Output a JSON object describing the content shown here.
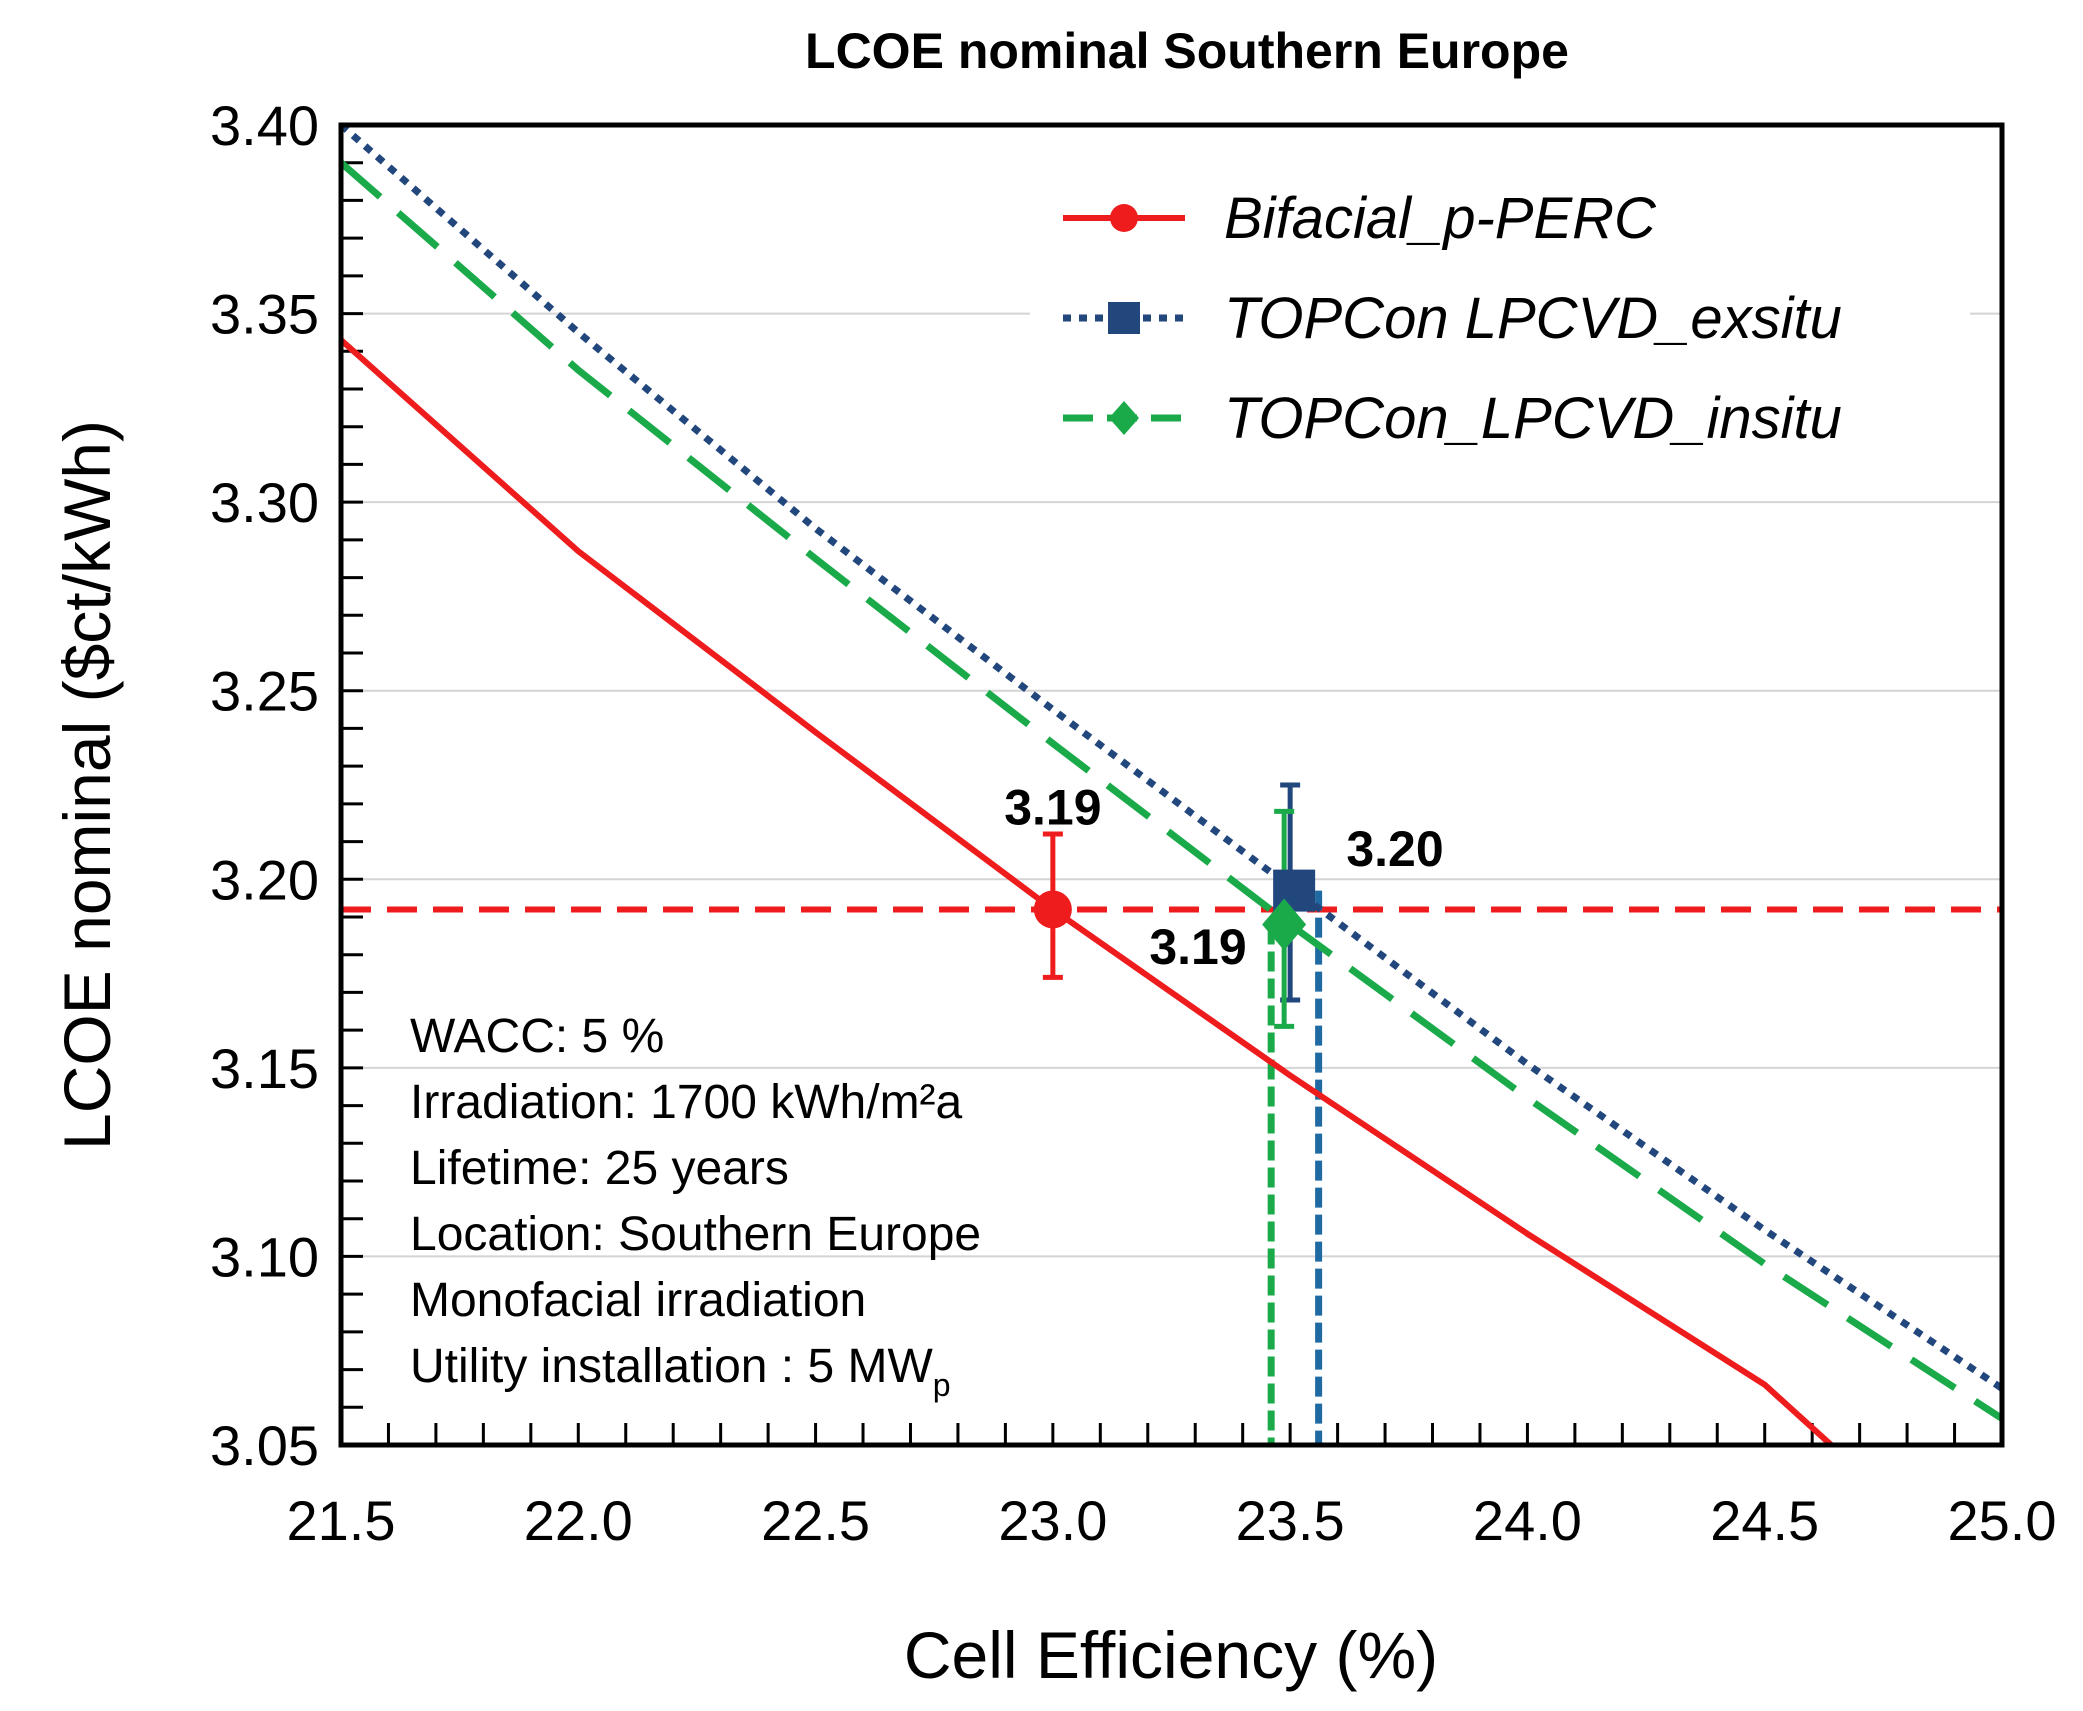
{
  "chart_data": {
    "type": "line",
    "title": "LCOE nominal Southern Europe",
    "xlabel": "Cell Efficiency (%)",
    "ylabel": "LCOE nominal ($ct/kWh)",
    "xlim": [
      21.5,
      25.0
    ],
    "ylim": [
      3.05,
      3.4
    ],
    "x_ticks": [
      "21.5",
      "22.0",
      "22.5",
      "23.0",
      "23.5",
      "24.0",
      "24.5",
      "25.0"
    ],
    "y_ticks": [
      "3.05",
      "3.10",
      "3.15",
      "3.20",
      "3.25",
      "3.30",
      "3.35",
      "3.40"
    ],
    "grid": "horizontal",
    "legend_position": "top-right",
    "series": [
      {
        "name": "Bifacial_p-PERC",
        "color": "#ee1c1c",
        "line_style": "solid",
        "marker": "circle",
        "x": [
          21.5,
          22.0,
          22.5,
          23.0,
          23.5,
          24.0,
          24.5,
          24.64
        ],
        "y": [
          3.343,
          3.287,
          3.239,
          3.192,
          3.148,
          3.106,
          3.066,
          3.05
        ],
        "highlight": {
          "x": 23.0,
          "y": 3.192,
          "label": "3.19",
          "error_low": 3.174,
          "error_high": 3.212
        }
      },
      {
        "name": "TOPCon LPCVD_exsitu",
        "color": "#22477d",
        "line_style": "dotted",
        "marker": "square",
        "x": [
          21.5,
          22.0,
          22.5,
          23.0,
          23.5,
          24.0,
          24.5,
          25.0
        ],
        "y": [
          3.4,
          3.345,
          3.293,
          3.245,
          3.198,
          3.151,
          3.107,
          3.065
        ],
        "highlight": {
          "x": 23.5,
          "y": 3.197,
          "label": "3.20",
          "error_low": 3.168,
          "error_high": 3.225
        }
      },
      {
        "name": "TOPCon_LPCVD_insitu",
        "color": "#1aaa4a",
        "line_style": "dashed",
        "marker": "diamond",
        "x": [
          21.5,
          22.0,
          22.5,
          23.0,
          23.5,
          24.0,
          24.5,
          25.0
        ],
        "y": [
          3.39,
          3.335,
          3.285,
          3.236,
          3.188,
          3.142,
          3.098,
          3.057
        ],
        "highlight": {
          "x": 23.5,
          "y": 3.188,
          "label": "3.19",
          "error_low": 3.161,
          "error_high": 3.218
        }
      }
    ],
    "reference_lines": [
      {
        "orientation": "horizontal",
        "value": 3.192,
        "color": "#ee1c1c"
      },
      {
        "orientation": "vertical",
        "value": 23.46,
        "color": "#1aaa4a"
      },
      {
        "orientation": "vertical",
        "value": 23.56,
        "color": "#1f6aa3"
      }
    ],
    "annotations": [
      "WACC: 5 %",
      "Irradiation: 1700 kWh/m²a",
      "Lifetime: 25 years",
      "Location: Southern Europe",
      "Monofacial irradiation"
    ],
    "annotation_last": {
      "text": "Utility installation : 5 MW",
      "subscript": "p"
    }
  }
}
